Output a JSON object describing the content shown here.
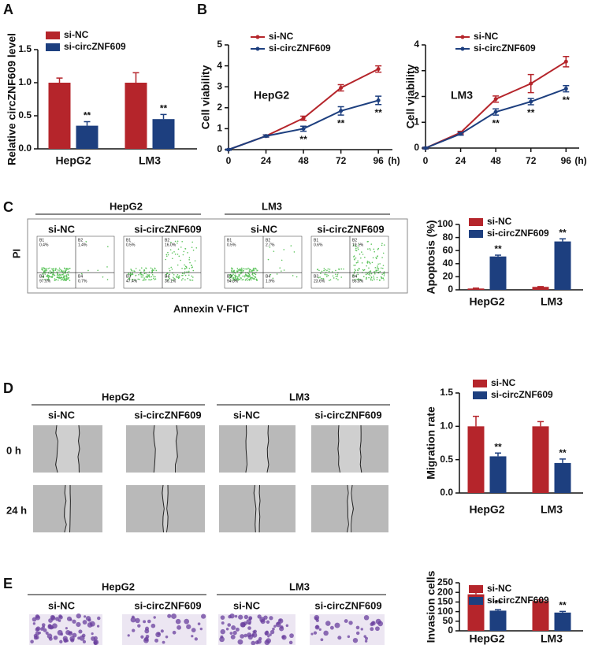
{
  "letters": [
    "A",
    "B"
  ],
  "chart_data": [
    {
      "type": "bar",
      "y_label": "Relative circZNF609 level",
      "categories": [
        "HepG2",
        "LM3"
      ],
      "ylim": [
        0,
        1.5
      ],
      "yticks": [
        {
          "value": 0,
          "label": "0.0"
        },
        {
          "value": 0.5,
          "label": "0.5"
        },
        {
          "value": 1,
          "label": "1.0"
        },
        {
          "value": 1.5,
          "label": "1.5"
        }
      ],
      "series": [
        {
          "name": "si-NC",
          "color": "#b5252b",
          "values": [
            1.0,
            1.0
          ],
          "errors": [
            0.07,
            0.15
          ]
        },
        {
          "name": "si-circZNF609",
          "color": "#1d3f7f",
          "values": [
            0.35,
            0.45
          ],
          "errors": [
            0.06,
            0.07
          ],
          "significance": [
            "**",
            "**"
          ]
        }
      ]
    },
    {
      "type": "line",
      "title": "HepG2",
      "y_label": "Cell viability",
      "x_unit": "(h)",
      "x": [
        0,
        24,
        48,
        72,
        96
      ],
      "xlim": [
        0,
        105
      ],
      "xticks": [
        0,
        24,
        48,
        72,
        96
      ],
      "ylim": [
        0,
        5
      ],
      "yticks": [
        0,
        1,
        2,
        3,
        4,
        5
      ],
      "series": [
        {
          "name": "si-NC",
          "color": "#b5252b",
          "values": [
            0,
            0.65,
            1.5,
            2.95,
            3.85
          ],
          "errors": [
            0.03,
            0.05,
            0.1,
            0.15,
            0.15
          ]
        },
        {
          "name": "si-circZNF609",
          "color": "#1d3f7f",
          "values": [
            0,
            0.65,
            1.0,
            1.85,
            2.35
          ],
          "errors": [
            0.03,
            0.05,
            0.12,
            0.2,
            0.2
          ],
          "significance": [
            null,
            null,
            "**",
            "**",
            "**"
          ]
        }
      ]
    },
    {
      "type": "line",
      "title": "LM3",
      "y_label": "Cell viability",
      "x_unit": "(h)",
      "x": [
        0,
        24,
        48,
        72,
        96
      ],
      "xlim": [
        0,
        105
      ],
      "xticks": [
        0,
        24,
        48,
        72,
        96
      ],
      "ylim": [
        0,
        4
      ],
      "yticks": [
        0,
        1,
        2,
        3,
        4
      ],
      "series": [
        {
          "name": "si-NC",
          "color": "#b5252b",
          "values": [
            0,
            0.6,
            1.9,
            2.5,
            3.35
          ],
          "errors": [
            0.03,
            0.05,
            0.12,
            0.35,
            0.2
          ]
        },
        {
          "name": "si-circZNF609",
          "color": "#1d3f7f",
          "values": [
            0,
            0.55,
            1.4,
            1.8,
            2.3
          ],
          "errors": [
            0.03,
            0.05,
            0.12,
            0.12,
            0.12
          ],
          "significance": [
            null,
            null,
            "**",
            "**",
            "**"
          ]
        }
      ]
    },
    {
      "type": "bar",
      "y_label": "Apoptosis (%)",
      "categories": [
        "HepG2",
        "LM3"
      ],
      "ylim": [
        0,
        100
      ],
      "yticks": [
        0,
        20,
        40,
        60,
        80,
        100
      ],
      "series": [
        {
          "name": "si-NC",
          "color": "#b5252b",
          "values": [
            2,
            4.5
          ],
          "errors": [
            0.5,
            0.5
          ]
        },
        {
          "name": "si-circZNF609",
          "color": "#1d3f7f",
          "values": [
            51,
            74
          ],
          "errors": [
            2,
            4
          ],
          "significance": [
            "**",
            "**"
          ]
        }
      ]
    },
    {
      "type": "bar",
      "y_label": "Migration rate",
      "categories": [
        "HepG2",
        "LM3"
      ],
      "ylim": [
        0,
        1.5
      ],
      "yticks": [
        {
          "value": 0,
          "label": "0.0"
        },
        {
          "value": 0.5,
          "label": "0.5"
        },
        {
          "value": 1,
          "label": "1.0"
        },
        {
          "value": 1.5,
          "label": "1.5"
        }
      ],
      "series": [
        {
          "name": "si-NC",
          "color": "#b5252b",
          "values": [
            1.0,
            1.0
          ],
          "errors": [
            0.15,
            0.07
          ]
        },
        {
          "name": "si-circZNF609",
          "color": "#1d3f7f",
          "values": [
            0.55,
            0.45
          ],
          "errors": [
            0.05,
            0.06
          ],
          "significance": [
            "**",
            "**"
          ]
        }
      ]
    },
    {
      "type": "bar",
      "y_label": "Invasion cells",
      "categories": [
        "HepG2",
        "LM3"
      ],
      "ylim": [
        0,
        250
      ],
      "yticks": [
        0,
        50,
        100,
        150,
        200,
        250
      ],
      "series": [
        {
          "name": "si-NC",
          "color": "#b5252b",
          "values": [
            190,
            155
          ],
          "errors": [
            12,
            6
          ]
        },
        {
          "name": "si-circZNF609",
          "color": "#1d3f7f",
          "values": [
            105,
            95
          ],
          "errors": [
            5,
            6
          ],
          "significance": [
            "**",
            "**"
          ]
        }
      ]
    }
  ],
  "panel_c": {
    "letter": "C",
    "y_label": "PI",
    "x_label": "Annexin V-FICT",
    "groups": [
      {
        "name": "HepG2",
        "samples": [
          {
            "name": "si-NC",
            "quadrants": [
              {
                "id": "B1",
                "pct": "0.4%"
              },
              {
                "id": "B2",
                "pct": "1.4%"
              },
              {
                "id": "B3",
                "pct": "97.5%"
              },
              {
                "id": "B4",
                "pct": "0.7%"
              }
            ]
          },
          {
            "name": "si-circZNF609",
            "quadrants": [
              {
                "id": "B1",
                "pct": "0.5%"
              },
              {
                "id": "B2",
                "pct": "16.0%"
              },
              {
                "id": "B3",
                "pct": "47.4%"
              },
              {
                "id": "B4",
                "pct": "36.1%"
              }
            ]
          }
        ]
      },
      {
        "name": "LM3",
        "samples": [
          {
            "name": "si-NC",
            "quadrants": [
              {
                "id": "B1",
                "pct": "0.5%"
              },
              {
                "id": "B2",
                "pct": "2.7%"
              },
              {
                "id": "B3",
                "pct": "94.8%"
              },
              {
                "id": "B4",
                "pct": "1.9%"
              }
            ]
          },
          {
            "name": "si-circZNF609",
            "quadrants": [
              {
                "id": "B1",
                "pct": "0.6%"
              },
              {
                "id": "B2",
                "pct": "19.1%"
              },
              {
                "id": "B3",
                "pct": "23.6%"
              },
              {
                "id": "B4",
                "pct": "56.8%"
              }
            ]
          }
        ]
      }
    ]
  },
  "panel_d": {
    "letter": "D",
    "rows": [
      "0 h",
      "24 h"
    ],
    "groups": [
      {
        "name": "HepG2",
        "samples": [
          "si-NC",
          "si-circZNF609"
        ]
      },
      {
        "name": "LM3",
        "samples": [
          "si-NC",
          "si-circZNF609"
        ]
      }
    ]
  },
  "panel_e": {
    "letter": "E",
    "groups": [
      {
        "name": "HepG2",
        "samples": [
          "si-NC",
          "si-circZNF609"
        ]
      },
      {
        "name": "LM3",
        "samples": [
          "si-NC",
          "si-circZNF609"
        ]
      }
    ]
  }
}
